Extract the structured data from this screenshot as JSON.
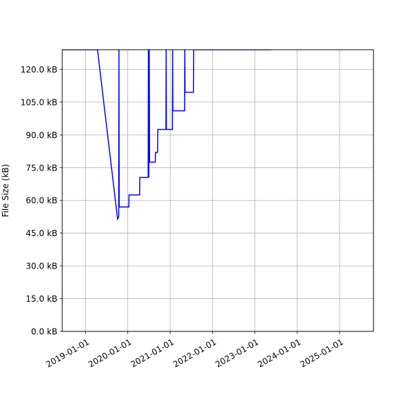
{
  "chart_data": {
    "type": "line",
    "title": "",
    "xlabel": "",
    "ylabel": "File Size (kB)",
    "x_type": "date",
    "xlim": [
      "2018-06-15",
      "2025-10-20"
    ],
    "ylim": [
      0,
      129
    ],
    "x_ticks": [
      "2019-01-01",
      "2020-01-01",
      "2021-01-01",
      "2022-01-01",
      "2023-01-01",
      "2024-01-01",
      "2025-01-01"
    ],
    "y_ticks": [
      0,
      15,
      30,
      45,
      60,
      75,
      90,
      105,
      120
    ],
    "y_tick_labels": [
      "0.0 kB",
      "15.0 kB",
      "30.0 kB",
      "45.0 kB",
      "60.0 kB",
      "75.0 kB",
      "90.0 kB",
      "105.0 kB",
      "120.0 kB"
    ],
    "grid": true,
    "legend": "none",
    "series": [
      {
        "color": "#0000ff",
        "points": [
          [
            "2018-06-15",
            129
          ],
          [
            "2019-04-15",
            129
          ],
          [
            "2019-10-05",
            51.5
          ],
          [
            "2019-10-15",
            52.5
          ],
          [
            "2019-10-17",
            129
          ],
          [
            "2019-10-19",
            57
          ],
          [
            "2020-01-10",
            57
          ],
          [
            "2020-01-12",
            62.5
          ],
          [
            "2020-04-12",
            62.5
          ],
          [
            "2020-04-14",
            70.5
          ],
          [
            "2020-06-25",
            70.5
          ],
          [
            "2020-06-27",
            129
          ],
          [
            "2020-06-30",
            70.5
          ],
          [
            "2020-07-04",
            129
          ],
          [
            "2020-07-07",
            77.5
          ],
          [
            "2020-08-25",
            77.5
          ],
          [
            "2020-08-27",
            82
          ],
          [
            "2020-09-14",
            82
          ],
          [
            "2020-09-16",
            92.5
          ],
          [
            "2020-11-25",
            92.5
          ],
          [
            "2020-11-27",
            129
          ],
          [
            "2020-11-29",
            92.5
          ],
          [
            "2021-01-20",
            92.5
          ],
          [
            "2021-01-22",
            129
          ],
          [
            "2021-01-24",
            101
          ],
          [
            "2021-05-05",
            101
          ],
          [
            "2021-05-07",
            129
          ],
          [
            "2021-05-09",
            109.5
          ],
          [
            "2021-07-20",
            109.5
          ],
          [
            "2021-07-22",
            129
          ],
          [
            "2023-05-20",
            129
          ]
        ]
      }
    ]
  }
}
